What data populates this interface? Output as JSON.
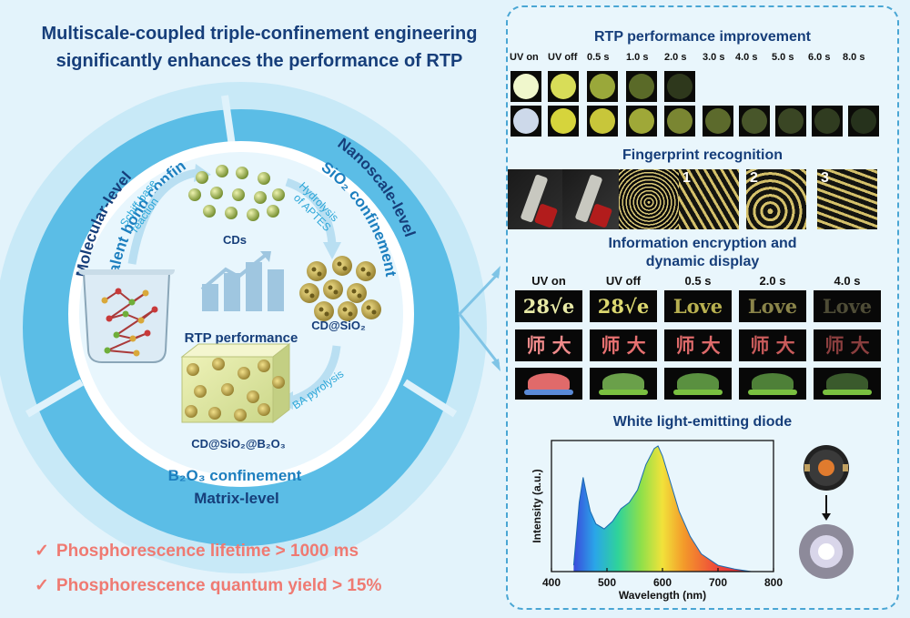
{
  "left": {
    "title_line1": "Multiscale-coupled triple-confinement engineering",
    "title_line2": "significantly enhances the performance of RTP",
    "ring": {
      "molecular_level": "Molecular-level",
      "covalent": "covalent bond confinement",
      "nanoscale_level": "Nanoscale-level",
      "sio2_conf": "SiO₂ confinement",
      "b2o3_conf": "B₂O₃ confinement",
      "matrix_level": "Matrix-level"
    },
    "inner": {
      "cds": "CDs",
      "schiff_line1": "Schiff-base",
      "schiff_line2": "reaction",
      "hydrolysis_line1": "Hydrolysis",
      "hydrolysis_line2": "of APTES",
      "cd_sio2": "CD@SiO₂",
      "ba_pyrolysis": "BA pyrolysis",
      "cd_sio2_b2o3": "CD@SiO₂@B₂O₃",
      "rtp_performance": "RTP performance"
    },
    "checks": [
      "Phosphorescence lifetime > 1000 ms",
      "Phosphorescence quantum yield > 15%"
    ]
  },
  "right": {
    "rtp_title": "RTP performance improvement",
    "time_labels": [
      "UV on",
      "UV off",
      "0.5 s",
      "1.0 s",
      "2.0 s",
      "3.0 s",
      "4.0 s",
      "5.0 s",
      "6.0 s",
      "8.0 s"
    ],
    "fingerprint_title": "Fingerprint recognition",
    "fingerprint_numbers": [
      "1",
      "2",
      "3"
    ],
    "encryption_title_line1": "Information encryption and",
    "encryption_title_line2": "dynamic display",
    "encryption_headers": [
      "UV on",
      "UV off",
      "0.5 s",
      "2.0 s",
      "4.0 s"
    ],
    "encryption_word1": "28√e",
    "encryption_word2": "Love",
    "encryption_chars": "师 大",
    "led_title": "White light-emitting diode"
  },
  "chart_data": {
    "type": "area",
    "xlabel": "Wavelength (nm)",
    "ylabel": "Intensity (a.u.)",
    "xlim": [
      400,
      800
    ],
    "x_ticks": [
      "400",
      "500",
      "600",
      "700",
      "800"
    ],
    "x": [
      440,
      450,
      457,
      463,
      470,
      480,
      495,
      510,
      525,
      540,
      555,
      570,
      585,
      592,
      600,
      615,
      630,
      650,
      670,
      700,
      730,
      760
    ],
    "y": [
      0.05,
      0.55,
      0.75,
      0.62,
      0.48,
      0.38,
      0.34,
      0.4,
      0.5,
      0.55,
      0.65,
      0.85,
      0.98,
      1.0,
      0.92,
      0.7,
      0.48,
      0.28,
      0.14,
      0.05,
      0.02,
      0.0
    ],
    "grid": false
  },
  "colors": {
    "title_blue": "#163e7a",
    "accent_cyan": "#2aa6d8",
    "check_red": "#ef7a72",
    "ring_fill": "#5bbde6"
  }
}
